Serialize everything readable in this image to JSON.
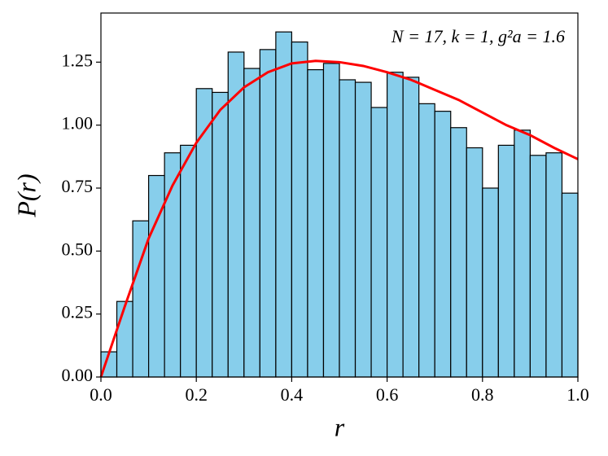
{
  "chart_data": {
    "type": "histogram",
    "annotation": "N = 17, k = 1, g²a = 1.6",
    "xlabel": "r",
    "ylabel": "P(r)",
    "bins": [
      0,
      0.03333,
      0.06667,
      0.1,
      0.13333,
      0.16667,
      0.2,
      0.23333,
      0.26667,
      0.3,
      0.33333,
      0.36667,
      0.4,
      0.43333,
      0.46667,
      0.5,
      0.53333,
      0.56667,
      0.6,
      0.63333,
      0.66667,
      0.7,
      0.73333,
      0.76667,
      0.8,
      0.83333,
      0.86667,
      0.9,
      0.93333,
      0.96667,
      1.0
    ],
    "counts": [
      0.1,
      0.3,
      0.62,
      0.8,
      0.89,
      0.92,
      1.145,
      1.13,
      1.29,
      1.225,
      1.3,
      1.37,
      1.33,
      1.22,
      1.245,
      1.18,
      1.17,
      1.07,
      1.21,
      1.19,
      1.085,
      1.055,
      0.99,
      0.91,
      0.75,
      0.92,
      0.98,
      0.88,
      0.89,
      0.73
    ],
    "color": "#87ceeb",
    "edgecolor": "#000000",
    "curve": {
      "color": "#ff0000",
      "x": [
        0,
        0.05,
        0.1,
        0.15,
        0.2,
        0.25,
        0.3,
        0.35,
        0.4,
        0.45,
        0.5,
        0.55,
        0.6,
        0.65,
        0.7,
        0.75,
        0.8,
        0.85,
        0.9,
        0.95,
        1.0
      ],
      "y": [
        0,
        0.28,
        0.55,
        0.76,
        0.93,
        1.06,
        1.15,
        1.21,
        1.245,
        1.255,
        1.25,
        1.235,
        1.21,
        1.18,
        1.14,
        1.1,
        1.05,
        1.0,
        0.96,
        0.91,
        0.865
      ]
    },
    "xlim": [
      0,
      1.0
    ],
    "xticks": [
      {
        "value": 0,
        "label": "0.0"
      },
      0.2,
      0.4,
      0.6,
      0.8,
      {
        "value": 1.0,
        "label": "1.0"
      }
    ],
    "ylim": [
      0,
      1.445
    ],
    "yticks": [
      {
        "value": 0,
        "label": "0.00"
      },
      {
        "value": 0.25,
        "label": "0.25"
      },
      {
        "value": 0.5,
        "label": "0.50"
      },
      {
        "value": 0.75,
        "label": "0.75"
      },
      {
        "value": 1.0,
        "label": "1.00"
      },
      {
        "value": 1.25,
        "label": "1.25"
      }
    ]
  }
}
